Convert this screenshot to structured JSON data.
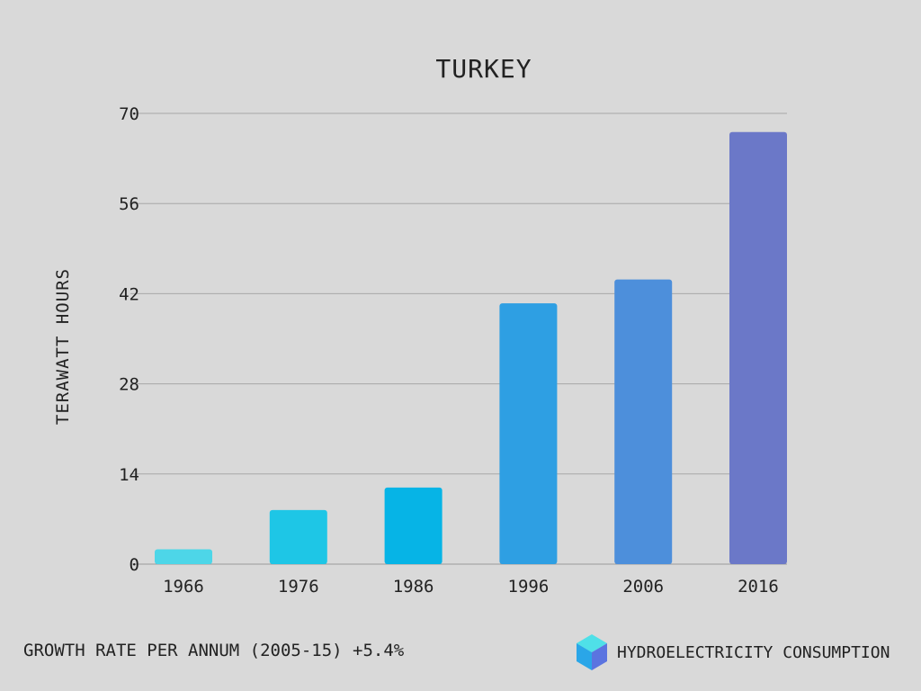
{
  "chart_data": {
    "type": "bar",
    "title": "TURKEY",
    "xlabel": "",
    "ylabel": "TERAWATT HOURS",
    "categories": [
      "1966",
      "1976",
      "1986",
      "1996",
      "2006",
      "2016"
    ],
    "values": [
      2.3,
      8.4,
      11.9,
      40.5,
      44.2,
      67.1
    ],
    "ylim": [
      0,
      70
    ],
    "yticks": [
      "0",
      "14",
      "28",
      "42",
      "56",
      "70"
    ],
    "bar_colors": [
      "#4dd6e8",
      "#1ec6e6",
      "#06b4e6",
      "#2e9fe3",
      "#4d8fdb",
      "#6b78c8"
    ],
    "grid": true
  },
  "footer": {
    "growth_text": "GROWTH RATE PER ANNUM (2005-15) +5.4%",
    "legend_label": "HYDROELECTRICITY CONSUMPTION",
    "legend_icon": "cube-icon"
  }
}
